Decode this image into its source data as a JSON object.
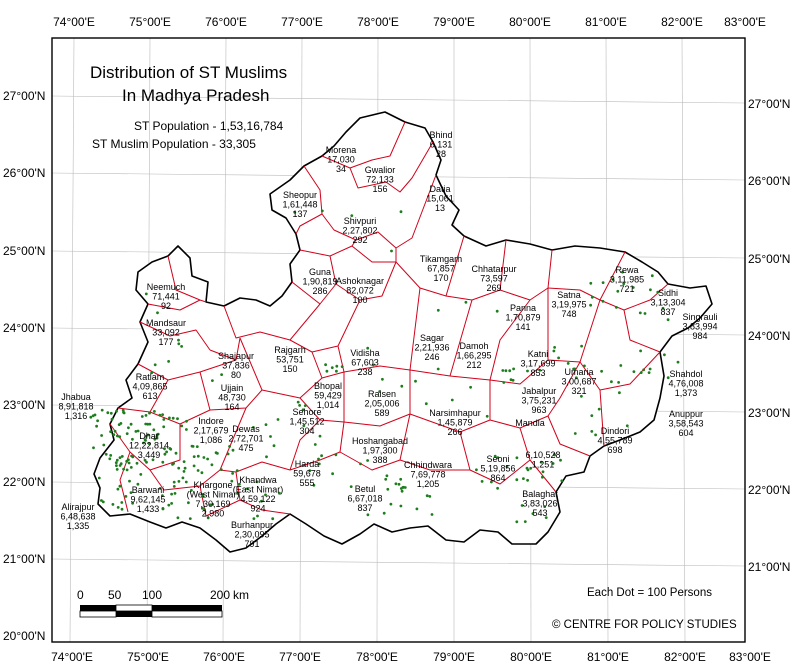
{
  "map": {
    "title_line1": "Distribution of ST Muslims",
    "title_line2": "In Madhya Pradesh",
    "st_population": "ST Population - 1,53,16,784",
    "st_muslim_population": "ST Muslim Population - 33,305",
    "dot_note": "Each Dot = 100 Persons",
    "credit": "© CENTRE FOR POLICY STUDIES",
    "scale_labels": [
      "0",
      "50",
      "100",
      "200",
      "km"
    ],
    "lon_labels": [
      "74°00'E",
      "75°00'E",
      "76°00'E",
      "77°00'E",
      "78°00'E",
      "79°00'E",
      "80°00'E",
      "81°00'E",
      "82°00'E",
      "83°00'E"
    ],
    "lat_labels": [
      "27°00'N",
      "26°00'N",
      "25°00'N",
      "24°00'N",
      "23°00'N",
      "22°00'N",
      "21°00'N",
      "20°00'N"
    ],
    "colors": {
      "state_border": "#000000",
      "district_border": "#d0021b",
      "dot": "#1e7d1e",
      "frame": "#000000"
    }
  },
  "districts": [
    {
      "name": "Bhind",
      "pop": "6,131",
      "muslims": "28"
    },
    {
      "name": "Morena",
      "pop": "17,030",
      "muslims": "34"
    },
    {
      "name": "Gwalior",
      "pop": "72,133",
      "muslims": "156"
    },
    {
      "name": "Datia",
      "pop": "15,061",
      "muslims": "13"
    },
    {
      "name": "Sheopur",
      "pop": "1,61,448",
      "muslims": "137"
    },
    {
      "name": "Shivpuri",
      "pop": "2,27,802",
      "muslims": "292"
    },
    {
      "name": "Tikamgarh",
      "pop": "67,857",
      "muslims": "170"
    },
    {
      "name": "Chhatarpur",
      "pop": "73,597",
      "muslims": "269"
    },
    {
      "name": "Rewa",
      "pop": "3,11,985",
      "muslims": "721"
    },
    {
      "name": "Satna",
      "pop": "3,19,975",
      "muslims": "748"
    },
    {
      "name": "Sidhi",
      "pop": "3,13,304",
      "muslims": "837"
    },
    {
      "name": "Singrauli",
      "pop": "3,83,994",
      "muslims": "984"
    },
    {
      "name": "Neemuch",
      "pop": "71,441",
      "muslims": "92"
    },
    {
      "name": "Mandsaur",
      "pop": "33,092",
      "muslims": "177"
    },
    {
      "name": "Guna",
      "pop": "1,90,819",
      "muslims": "286"
    },
    {
      "name": "Ashoknagar",
      "pop": "82,072",
      "muslims": "100"
    },
    {
      "name": "Panna",
      "pop": "1,70,879",
      "muslims": "141"
    },
    {
      "name": "Sagar",
      "pop": "2,21,936",
      "muslims": "246"
    },
    {
      "name": "Damoh",
      "pop": "1,66,295",
      "muslims": "212"
    },
    {
      "name": "Katni",
      "pop": "3,17,699",
      "muslims": "853"
    },
    {
      "name": "Umaria",
      "pop": "3,00,687",
      "muslims": "321"
    },
    {
      "name": "Shahdol",
      "pop": "4,76,008",
      "muslims": "1,373"
    },
    {
      "name": "Ratlam",
      "pop": "4,09,865",
      "muslims": "613"
    },
    {
      "name": "Shajapur",
      "pop": "37,836",
      "muslims": "80"
    },
    {
      "name": "Rajgarh",
      "pop": "53,751",
      "muslims": "150"
    },
    {
      "name": "Vidisha",
      "pop": "67,603",
      "muslims": "238"
    },
    {
      "name": "Bhopal",
      "pop": "59,429",
      "muslims": "1,014"
    },
    {
      "name": "Raisen",
      "pop": "2,05,006",
      "muslims": "589"
    },
    {
      "name": "Jabalpur",
      "pop": "3,75,231",
      "muslims": "963"
    },
    {
      "name": "Jhabua",
      "pop": "8,91,818",
      "muslims": "1,316"
    },
    {
      "name": "Ujjain",
      "pop": "48,730",
      "muslims": "164"
    },
    {
      "name": "Indore",
      "pop": "2,17,679",
      "muslims": "1,086"
    },
    {
      "name": "Dewas",
      "pop": "2,72,701",
      "muslims": "475"
    },
    {
      "name": "Sehore",
      "pop": "1,45,512",
      "muslims": "304"
    },
    {
      "name": "Narsimhapur",
      "pop": "1,45,879",
      "muslims": "266"
    },
    {
      "name": "Mandla",
      "pop": "",
      "muslims": ""
    },
    {
      "name": "Dindori",
      "pop": "4,55,789",
      "muslims": "698"
    },
    {
      "name": "Anuppur",
      "pop": "3,58,543",
      "muslims": "604"
    },
    {
      "name": "Dhar",
      "pop": "12,22,814",
      "muslims": "3,449"
    },
    {
      "name": "Hoshangabad",
      "pop": "1,97,300",
      "muslims": "388"
    },
    {
      "name": "Harda",
      "pop": "59,678",
      "muslims": "555"
    },
    {
      "name": "Chhindwara",
      "pop": "7,69,778",
      "muslims": "1,205"
    },
    {
      "name": "Seoni",
      "pop": "5,19,856",
      "muslims": "864"
    },
    {
      "name": "",
      "pop": "6,10,528",
      "muslims": "1,251"
    },
    {
      "name": "Balaghat",
      "pop": "3,83,026",
      "muslims": "543"
    },
    {
      "name": "Barwani",
      "pop": "9,62,145",
      "muslims": "1,433"
    },
    {
      "name": "Khargone (West Nimar)",
      "pop": "7,30,169",
      "muslims": "2,980"
    },
    {
      "name": "Khandwa (East Nimar)",
      "pop": "4,59,122",
      "muslims": "924"
    },
    {
      "name": "Betul",
      "pop": "6,67,018",
      "muslims": "837"
    },
    {
      "name": "Burhanpur",
      "pop": "2,30,095",
      "muslims": "791"
    },
    {
      "name": "Alirajpur",
      "pop": "6,48,638",
      "muslims": "1,335"
    }
  ]
}
